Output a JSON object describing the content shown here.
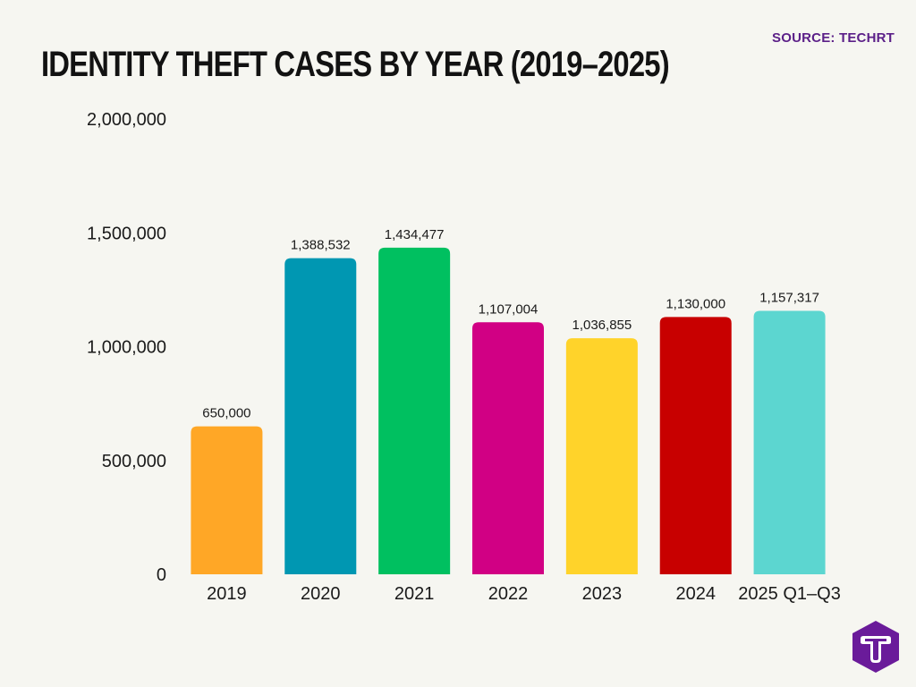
{
  "header": {
    "title": "IDENTITY THEFT CASES BY YEAR (2019–2025)",
    "source": "SOURCE: TECHRT"
  },
  "logo": {
    "icon": "techrt-logo-icon",
    "letter": "T",
    "color": "#6a1b9a"
  },
  "chart_data": {
    "type": "bar",
    "title": "IDENTITY THEFT CASES BY YEAR (2019–2025)",
    "xlabel": "",
    "ylabel": "",
    "ylim": [
      0,
      2000000
    ],
    "yticks": [
      0,
      500000,
      1000000,
      1500000,
      2000000
    ],
    "ytick_labels": [
      "0",
      "500,000",
      "1,000,000",
      "1,500,000",
      "2,000,000"
    ],
    "grid": false,
    "legend": "none",
    "categories": [
      "2019",
      "2020",
      "2021",
      "2022",
      "2023",
      "2024",
      "2025 Q1–Q3"
    ],
    "values": [
      650000,
      1388532,
      1434477,
      1107004,
      1036855,
      1130000,
      1157317
    ],
    "data_labels": [
      "650,000",
      "1,388,532",
      "1,434,477",
      "1,107,004",
      "1,036,855",
      "1,130,000",
      "1,157,317"
    ],
    "colors": [
      "#ffa726",
      "#0097b2",
      "#00c060",
      "#d10084",
      "#ffd32a",
      "#c80000",
      "#5cd6d0"
    ]
  }
}
